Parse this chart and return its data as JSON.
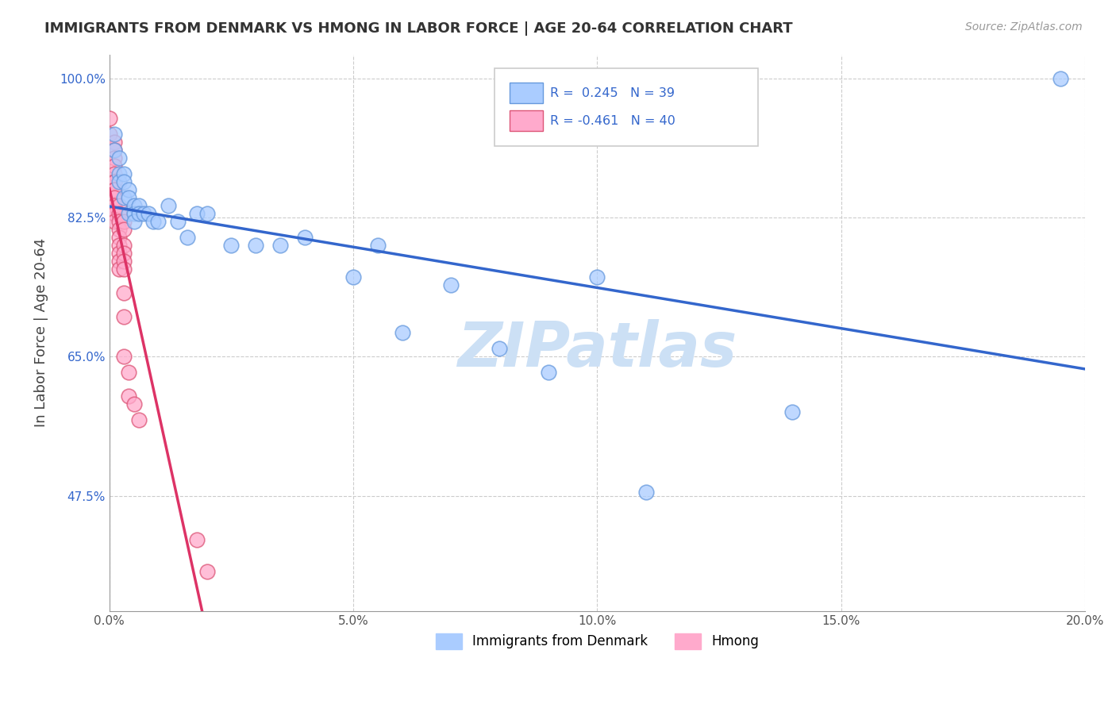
{
  "title": "IMMIGRANTS FROM DENMARK VS HMONG IN LABOR FORCE | AGE 20-64 CORRELATION CHART",
  "source": "Source: ZipAtlas.com",
  "ylabel": "In Labor Force | Age 20-64",
  "xlim": [
    0.0,
    0.2
  ],
  "ylim": [
    0.33,
    1.03
  ],
  "xtick_labels": [
    "0.0%",
    "5.0%",
    "10.0%",
    "15.0%",
    "20.0%"
  ],
  "xtick_vals": [
    0.0,
    0.05,
    0.1,
    0.15,
    0.2
  ],
  "ytick_labels": [
    "47.5%",
    "65.0%",
    "82.5%",
    "100.0%"
  ],
  "ytick_vals": [
    0.475,
    0.65,
    0.825,
    1.0
  ],
  "background_color": "#ffffff",
  "grid_color": "#cccccc",
  "denmark_color": "#aaccff",
  "hmong_color": "#ffaacc",
  "denmark_edge_color": "#6699dd",
  "hmong_edge_color": "#dd5577",
  "denmark_line_color": "#3366cc",
  "hmong_line_color": "#dd3366",
  "hmong_dash_color": "#dd9999",
  "r_denmark": 0.245,
  "n_denmark": 39,
  "r_hmong": -0.461,
  "n_hmong": 40,
  "legend_text_color": "#3366cc",
  "watermark_color": "#cce0f5",
  "denmark_x": [
    0.001,
    0.001,
    0.002,
    0.002,
    0.002,
    0.003,
    0.003,
    0.003,
    0.004,
    0.004,
    0.004,
    0.005,
    0.005,
    0.005,
    0.006,
    0.006,
    0.007,
    0.008,
    0.009,
    0.01,
    0.012,
    0.014,
    0.016,
    0.018,
    0.02,
    0.025,
    0.03,
    0.035,
    0.04,
    0.05,
    0.055,
    0.06,
    0.07,
    0.08,
    0.09,
    0.1,
    0.11,
    0.14,
    0.195
  ],
  "denmark_y": [
    0.93,
    0.91,
    0.9,
    0.88,
    0.87,
    0.88,
    0.87,
    0.85,
    0.86,
    0.85,
    0.83,
    0.84,
    0.83,
    0.82,
    0.84,
    0.83,
    0.83,
    0.83,
    0.82,
    0.82,
    0.84,
    0.82,
    0.8,
    0.83,
    0.83,
    0.79,
    0.79,
    0.79,
    0.8,
    0.75,
    0.79,
    0.68,
    0.74,
    0.66,
    0.63,
    0.75,
    0.48,
    0.58,
    1.0
  ],
  "hmong_x": [
    0.0,
    0.0,
    0.001,
    0.001,
    0.001,
    0.001,
    0.001,
    0.001,
    0.001,
    0.001,
    0.001,
    0.001,
    0.001,
    0.001,
    0.001,
    0.001,
    0.002,
    0.002,
    0.002,
    0.002,
    0.002,
    0.002,
    0.002,
    0.002,
    0.002,
    0.003,
    0.003,
    0.003,
    0.003,
    0.003,
    0.003,
    0.003,
    0.003,
    0.003,
    0.004,
    0.004,
    0.005,
    0.006,
    0.018,
    0.02
  ],
  "hmong_y": [
    0.95,
    0.93,
    0.92,
    0.91,
    0.9,
    0.89,
    0.88,
    0.87,
    0.87,
    0.86,
    0.86,
    0.85,
    0.84,
    0.83,
    0.83,
    0.82,
    0.84,
    0.83,
    0.82,
    0.81,
    0.8,
    0.79,
    0.78,
    0.77,
    0.76,
    0.82,
    0.81,
    0.79,
    0.78,
    0.77,
    0.76,
    0.73,
    0.7,
    0.65,
    0.63,
    0.6,
    0.59,
    0.57,
    0.42,
    0.38
  ]
}
